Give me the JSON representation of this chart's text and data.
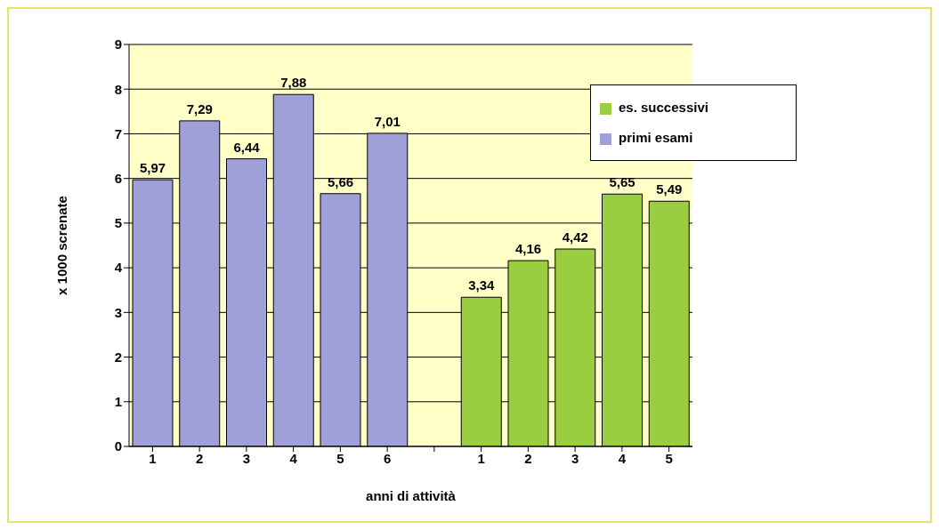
{
  "chart_data": {
    "type": "bar",
    "xlabel": "anni di attività",
    "ylabel": "x 1000 screnate",
    "categories": [
      "1",
      "2",
      "3",
      "4",
      "5",
      "6",
      null,
      "1",
      "2",
      "3",
      "4",
      "5"
    ],
    "series": [
      {
        "name": "primi  esami",
        "color": "#a0a0d8",
        "values": [
          5.97,
          7.29,
          6.44,
          7.88,
          5.66,
          7.01,
          null,
          null,
          null,
          null,
          null,
          null
        ],
        "value_labels": [
          "5,97",
          "7,29",
          "6,44",
          "7,88",
          "5,66",
          "7,01",
          null,
          null,
          null,
          null,
          null,
          null
        ]
      },
      {
        "name": "es.  successivi",
        "color": "#9acd40",
        "values": [
          null,
          null,
          null,
          null,
          null,
          null,
          null,
          3.34,
          4.16,
          4.42,
          5.65,
          5.49
        ],
        "value_labels": [
          null,
          null,
          null,
          null,
          null,
          null,
          null,
          "3,34",
          "4,16",
          "4,42",
          "5,65",
          "5,49"
        ]
      }
    ],
    "ylim": [
      0,
      9
    ],
    "yticks": [
      0,
      1,
      2,
      3,
      4,
      5,
      6,
      7,
      8,
      9
    ],
    "grid": "y",
    "legend": "top right"
  }
}
